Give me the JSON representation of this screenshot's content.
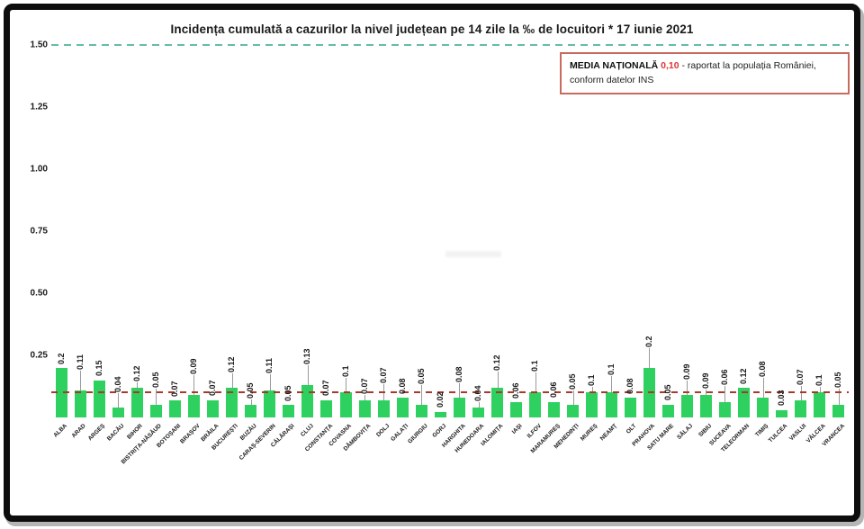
{
  "chart_data": {
    "type": "bar",
    "title": "Incidența cumulată a cazurilor la nivel județean pe 14 zile la ‰ de locuitori *  17 iunie 2021",
    "categories": [
      "ALBA",
      "ARAD",
      "ARGEȘ",
      "BACĂU",
      "BIHOR",
      "BISTRIȚA-NĂSĂUD",
      "BOTOȘANI",
      "BRAȘOV",
      "BRĂILA",
      "BUCUREȘTI",
      "BUZĂU",
      "CARAȘ-SEVERIN",
      "CĂLĂRAȘI",
      "CLUJ",
      "CONSTANȚA",
      "COVASNA",
      "DÂMBOVIȚA",
      "DOLJ",
      "GALAȚI",
      "GIURGIU",
      "GORJ",
      "HARGHITA",
      "HUNEDOARA",
      "IALOMIȚA",
      "IAȘI",
      "ILFOV",
      "MARAMUREȘ",
      "MEHEDINȚI",
      "MUREȘ",
      "NEAMȚ",
      "OLT",
      "PRAHOVA",
      "SATU MARE",
      "SĂLAJ",
      "SIBIU",
      "SUCEAVA",
      "TELEORMAN",
      "TIMIȘ",
      "TULCEA",
      "VASLUI",
      "VÂLCEA",
      "VRANCEA"
    ],
    "values": [
      0.2,
      0.11,
      0.15,
      0.04,
      0.12,
      0.05,
      0.07,
      0.09,
      0.07,
      0.12,
      0.05,
      0.11,
      0.05,
      0.13,
      0.07,
      0.1,
      0.07,
      0.07,
      0.08,
      0.05,
      0.02,
      0.08,
      0.04,
      0.12,
      0.06,
      0.1,
      0.06,
      0.05,
      0.1,
      0.1,
      0.08,
      0.2,
      0.05,
      0.09,
      0.09,
      0.06,
      0.12,
      0.08,
      0.03,
      0.07,
      0.1,
      0.05
    ],
    "xlabel": "",
    "ylabel": "",
    "ylim": [
      0,
      1.5
    ],
    "yticks": [
      1.5,
      1.25,
      1.0,
      0.75,
      0.5,
      0.25
    ],
    "grid": false,
    "national_average_line": 0.1,
    "threshold_line": 1.5,
    "bar_color": "#2ed05f",
    "average_line_color": "#a83a2c",
    "threshold_line_color": "#63bda6"
  },
  "legend": {
    "title": "MEDIA NAȚIONALĂ",
    "value": "0,10",
    "text": "- raportat la populația României, conform datelor INS"
  }
}
